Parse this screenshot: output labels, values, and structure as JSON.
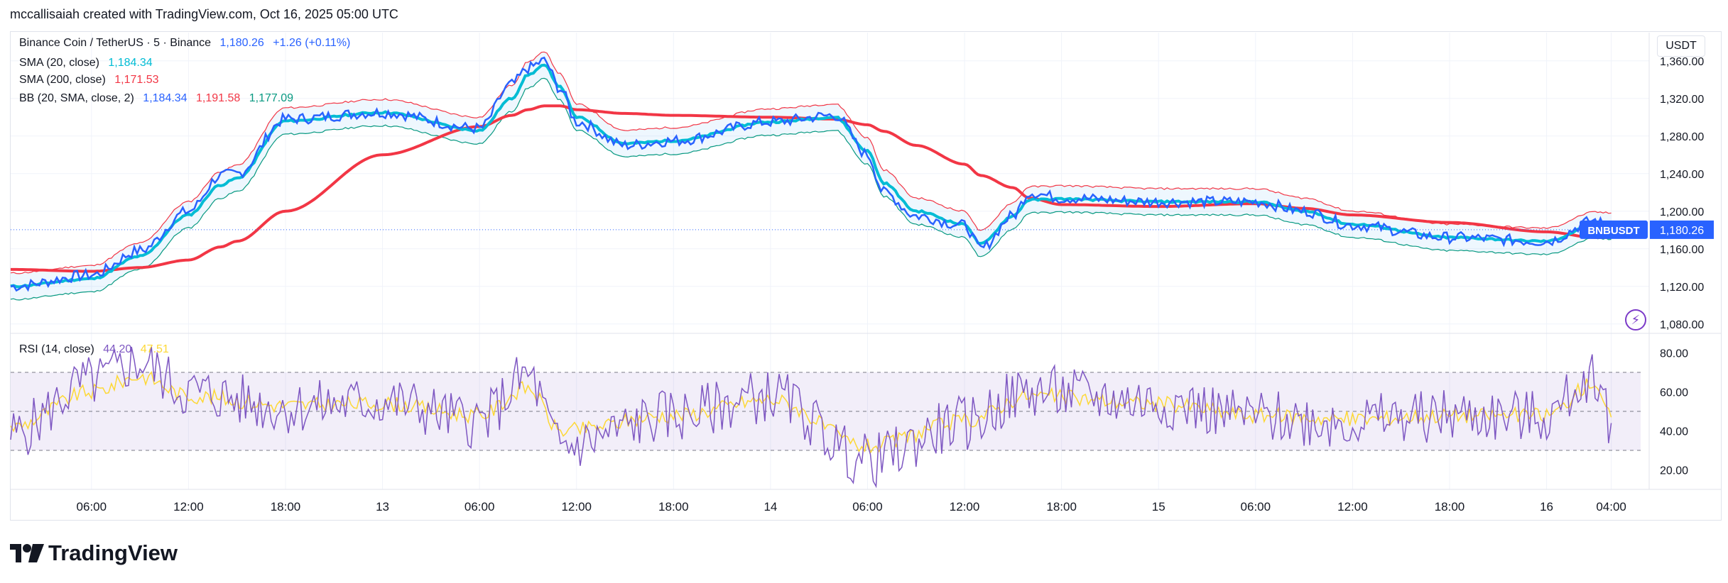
{
  "attribution": "mccallisaiah created with TradingView.com, Oct 16, 2025 05:00 UTC",
  "logo_text": "TradingView",
  "legend": {
    "main": {
      "title": "Binance Coin / TetherUS · 5 · Binance",
      "price": "1,180.26",
      "change": "+1.26 (+0.11%)"
    },
    "sma20": {
      "label": "SMA (20, close)",
      "value": "1,184.34"
    },
    "sma200": {
      "label": "SMA (200, close)",
      "value": "1,171.53"
    },
    "bb": {
      "label": "BB (20, SMA, close, 2)",
      "basis": "1,184.34",
      "upper": "1,191.58",
      "lower": "1,177.09"
    },
    "rsi": {
      "label": "RSI (14, close)",
      "value": "44.20",
      "ma": "47.51"
    }
  },
  "price_axis": {
    "unit": "USDT",
    "ticks": [
      "1,360.00",
      "1,320.00",
      "1,280.00",
      "1,240.00",
      "1,200.00",
      "1,160.00",
      "1,120.00",
      "1,080.00"
    ],
    "badge_symbol": "BNBUSDT",
    "badge_price": "1,180.26"
  },
  "rsi_axis": {
    "ticks": [
      "80.00",
      "60.00",
      "40.00",
      "20.00"
    ]
  },
  "time_axis": {
    "labels": [
      "06:00",
      "12:00",
      "18:00",
      "13",
      "06:00",
      "12:00",
      "18:00",
      "14",
      "06:00",
      "12:00",
      "18:00",
      "15",
      "06:00",
      "12:00",
      "18:00",
      "16",
      "04:00"
    ]
  },
  "colors": {
    "price": "#2962ff",
    "sma20": "#00bcd4",
    "sma200": "#f23645",
    "bb_upper": "#f23645",
    "bb_lower": "#089981",
    "bb_fill": "#2196f3",
    "rsi": "#7e57c2",
    "rsi_ma": "#fdd835",
    "rsi_band": "#7e57c2",
    "grid": "#f0f3fa"
  },
  "chart_data": [
    {
      "type": "line",
      "x_unit": "date",
      "x": [
        "2025-10-12 01:00",
        "2025-10-12 06:00",
        "2025-10-12 09:00",
        "2025-10-12 12:00",
        "2025-10-12 14:00",
        "2025-10-12 15:00",
        "2025-10-12 18:00",
        "2025-10-13 00:00",
        "2025-10-13 06:00",
        "2025-10-13 08:00",
        "2025-10-13 09:00",
        "2025-10-13 10:00",
        "2025-10-13 11:00",
        "2025-10-13 12:00",
        "2025-10-13 15:00",
        "2025-10-13 18:00",
        "2025-10-14 00:00",
        "2025-10-14 04:00",
        "2025-10-14 06:00",
        "2025-10-14 07:00",
        "2025-10-14 09:00",
        "2025-10-14 12:00",
        "2025-10-14 13:00",
        "2025-10-14 15:00",
        "2025-10-14 16:00",
        "2025-10-14 18:00",
        "2025-10-15 00:00",
        "2025-10-15 06:00",
        "2025-10-15 09:00",
        "2025-10-15 12:00",
        "2025-10-15 18:00",
        "2025-10-16 00:00",
        "2025-10-16 03:00",
        "2025-10-16 04:00"
      ],
      "series": [
        {
          "name": "Binance Coin / TetherUS",
          "values": [
            1120,
            1132,
            1158,
            1200,
            1238,
            1240,
            1298,
            1305,
            1288,
            1335,
            1352,
            1360,
            1330,
            1295,
            1270,
            1275,
            1295,
            1302,
            1260,
            1220,
            1195,
            1185,
            1160,
            1195,
            1220,
            1214,
            1210,
            1210,
            1200,
            1185,
            1172,
            1168,
            1190,
            1180
          ]
        },
        {
          "name": "SMA (20, close)",
          "values": [
            1120,
            1128,
            1152,
            1196,
            1228,
            1235,
            1296,
            1305,
            1286,
            1320,
            1345,
            1355,
            1332,
            1300,
            1272,
            1275,
            1295,
            1300,
            1264,
            1230,
            1200,
            1186,
            1165,
            1195,
            1212,
            1213,
            1210,
            1210,
            1200,
            1186,
            1172,
            1168,
            1185,
            1184
          ]
        },
        {
          "name": "SMA (200, close)",
          "values": [
            1138,
            1136,
            1140,
            1148,
            1162,
            1168,
            1200,
            1260,
            1290,
            1302,
            1308,
            1312,
            1312,
            1308,
            1304,
            1302,
            1300,
            1298,
            1292,
            1285,
            1270,
            1250,
            1238,
            1225,
            1214,
            1207,
            1205,
            1208,
            1203,
            1196,
            1188,
            1178,
            1172,
            1172
          ]
        }
      ],
      "ylim": [
        1070,
        1390
      ]
    },
    {
      "type": "line",
      "x_unit": "date",
      "x": [
        "2025-10-12 01:00",
        "2025-10-12 06:00",
        "2025-10-12 09:00",
        "2025-10-12 12:00",
        "2025-10-12 18:00",
        "2025-10-13 00:00",
        "2025-10-13 06:00",
        "2025-10-13 09:00",
        "2025-10-13 11:00",
        "2025-10-13 18:00",
        "2025-10-14 00:00",
        "2025-10-14 06:00",
        "2025-10-14 12:00",
        "2025-10-14 16:00",
        "2025-10-15 00:00",
        "2025-10-15 06:00",
        "2025-10-15 12:00",
        "2025-10-15 18:00",
        "2025-10-16 00:00",
        "2025-10-16 03:00",
        "2025-10-16 04:00"
      ],
      "series": [
        {
          "name": "RSI (14, close)",
          "values": [
            38,
            65,
            75,
            60,
            52,
            55,
            45,
            68,
            32,
            48,
            58,
            25,
            44,
            60,
            55,
            47,
            45,
            48,
            47,
            70,
            44
          ]
        },
        {
          "name": "RSI MA",
          "values": [
            42,
            60,
            68,
            58,
            53,
            54,
            48,
            62,
            40,
            48,
            56,
            32,
            45,
            58,
            54,
            48,
            46,
            48,
            48,
            65,
            47
          ]
        }
      ],
      "bands": [
        70,
        50,
        30
      ],
      "ylim": [
        10,
        90
      ]
    }
  ]
}
